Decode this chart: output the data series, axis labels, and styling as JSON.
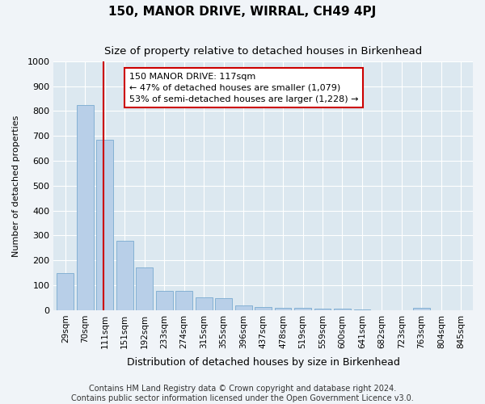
{
  "title": "150, MANOR DRIVE, WIRRAL, CH49 4PJ",
  "subtitle": "Size of property relative to detached houses in Birkenhead",
  "xlabel": "Distribution of detached houses by size in Birkenhead",
  "ylabel": "Number of detached properties",
  "categories": [
    "29sqm",
    "70sqm",
    "111sqm",
    "151sqm",
    "192sqm",
    "233sqm",
    "274sqm",
    "315sqm",
    "355sqm",
    "396sqm",
    "437sqm",
    "478sqm",
    "519sqm",
    "559sqm",
    "600sqm",
    "641sqm",
    "682sqm",
    "723sqm",
    "763sqm",
    "804sqm",
    "845sqm"
  ],
  "values": [
    148,
    825,
    683,
    280,
    173,
    78,
    78,
    50,
    48,
    20,
    13,
    8,
    8,
    5,
    5,
    3,
    1,
    0,
    8,
    0,
    0
  ],
  "bar_color": "#b8cfe8",
  "bar_edge_color": "#7aaad0",
  "vline_color": "#cc0000",
  "annotation_text": "150 MANOR DRIVE: 117sqm\n← 47% of detached houses are smaller (1,079)\n53% of semi-detached houses are larger (1,228) →",
  "annotation_box_facecolor": "#ffffff",
  "annotation_box_edgecolor": "#cc0000",
  "ylim": [
    0,
    1000
  ],
  "yticks": [
    0,
    100,
    200,
    300,
    400,
    500,
    600,
    700,
    800,
    900,
    1000
  ],
  "bg_color": "#f0f4f8",
  "plot_bg_color": "#dce8f0",
  "grid_color": "#ffffff",
  "footer": "Contains HM Land Registry data © Crown copyright and database right 2024.\nContains public sector information licensed under the Open Government Licence v3.0.",
  "title_fontsize": 11,
  "subtitle_fontsize": 9.5,
  "ylabel_fontsize": 8,
  "xlabel_fontsize": 9,
  "annotation_fontsize": 8,
  "footer_fontsize": 7,
  "tick_fontsize": 8,
  "xtick_fontsize": 7.5
}
